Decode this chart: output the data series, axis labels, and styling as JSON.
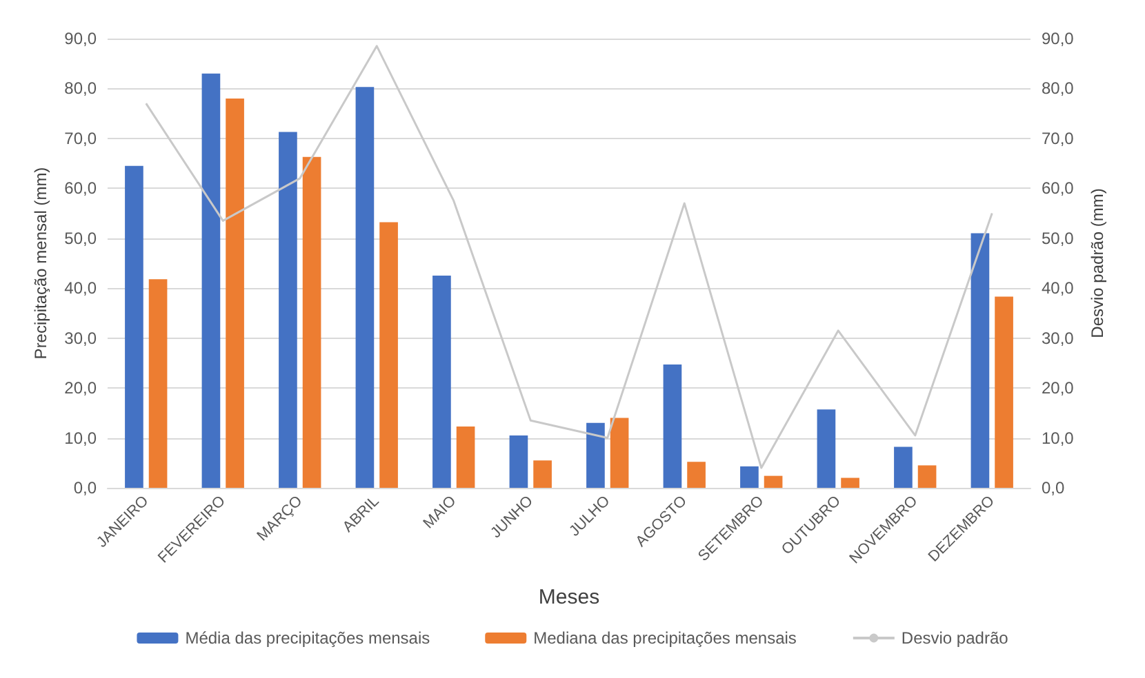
{
  "chart_data": {
    "type": "bar",
    "xlabel": "Meses",
    "ylabel": "Precipitação mensal (mm)",
    "y2label": "Desvio padrão (mm)",
    "categories": [
      "JANEIRO",
      "FEVEREIRO",
      "MARÇO",
      "ABRIL",
      "MAIO",
      "JUNHO",
      "JULHO",
      "AGOSTO",
      "SETEMBRO",
      "OUTUBRO",
      "NOVEMBRO",
      "DEZEMBRO"
    ],
    "series": [
      {
        "name": "Média das precipitações mensais",
        "color": "#4472c4",
        "values": [
          64.5,
          83,
          71.3,
          80.3,
          42.5,
          10.5,
          13,
          24.7,
          4.3,
          15.7,
          8.2,
          51
        ]
      },
      {
        "name": "Mediana das precipitações mensais",
        "color": "#ed7d31",
        "values": [
          41.8,
          78,
          66.3,
          53.2,
          12.3,
          5.5,
          14,
          5.2,
          2.4,
          2,
          4.5,
          38.3
        ]
      },
      {
        "name": "Desvio padrão",
        "type": "line",
        "axis": "y2",
        "color": "#c9c9c9",
        "marker": "none",
        "values": [
          77,
          53.5,
          62,
          88.5,
          57.5,
          13.5,
          10,
          57,
          4,
          31.5,
          10.5,
          55
        ]
      }
    ],
    "ylim": [
      0,
      90
    ],
    "yticks": [
      {
        "value": 0,
        "label": "0,0"
      },
      {
        "value": 10,
        "label": "10,0"
      },
      {
        "value": 20,
        "label": "20,0"
      },
      {
        "value": 30,
        "label": "30,0"
      },
      {
        "value": 40,
        "label": "40,0"
      },
      {
        "value": 50,
        "label": "50,0"
      },
      {
        "value": 60,
        "label": "60,0"
      },
      {
        "value": 70,
        "label": "70,0"
      },
      {
        "value": 80,
        "label": "80,0"
      },
      {
        "value": 90,
        "label": "90,0"
      }
    ],
    "y2lim": [
      0,
      90
    ],
    "y2ticks": [
      {
        "value": 0,
        "label": "0,0"
      },
      {
        "value": 10,
        "label": "10,0"
      },
      {
        "value": 20,
        "label": "20,0"
      },
      {
        "value": 30,
        "label": "30,0"
      },
      {
        "value": 40,
        "label": "40,0"
      },
      {
        "value": 50,
        "label": "50,0"
      },
      {
        "value": 60,
        "label": "60,0"
      },
      {
        "value": 70,
        "label": "70,0"
      },
      {
        "value": 80,
        "label": "80,0"
      },
      {
        "value": 90,
        "label": "90,0"
      }
    ],
    "grid": "y",
    "legend": "bottom"
  }
}
